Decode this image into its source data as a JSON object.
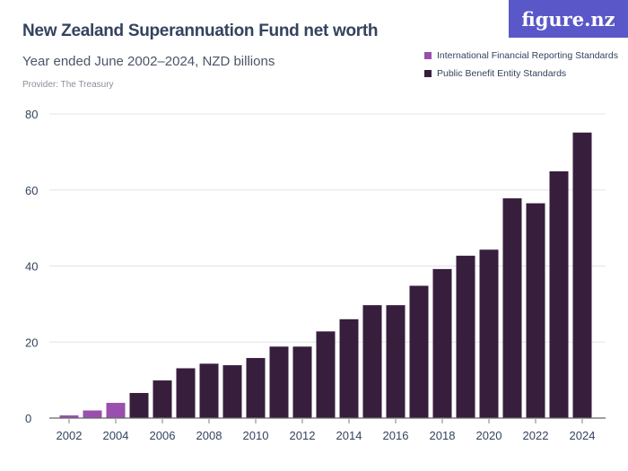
{
  "header": {
    "title": "New Zealand Superannuation Fund net worth",
    "subtitle": "Year ended June 2002–2024, NZD billions",
    "provider": "Provider: The Treasury",
    "logo": "figure.nz"
  },
  "chart_data": {
    "type": "bar",
    "title": "New Zealand Superannuation Fund net worth",
    "xlabel": "",
    "ylabel": "NZD billions",
    "ylim": [
      0,
      80
    ],
    "yticks": [
      0,
      20,
      40,
      60,
      80
    ],
    "xticks": [
      "2002",
      "2004",
      "2006",
      "2008",
      "2010",
      "2012",
      "2014",
      "2016",
      "2018",
      "2020",
      "2022",
      "2024"
    ],
    "categories": [
      "2002",
      "2003",
      "2004",
      "2005",
      "2006",
      "2007",
      "2008",
      "2009",
      "2010",
      "2011",
      "2012",
      "2013",
      "2014",
      "2015",
      "2016",
      "2017",
      "2018",
      "2019",
      "2020",
      "2021",
      "2022",
      "2023",
      "2024"
    ],
    "series": [
      {
        "name": "International Financial Reporting Standards",
        "color": "#9a4eae",
        "values": [
          0.7,
          2.0,
          4.0,
          null,
          null,
          null,
          null,
          null,
          null,
          null,
          null,
          null,
          null,
          null,
          null,
          null,
          null,
          null,
          null,
          null,
          null,
          null,
          null
        ]
      },
      {
        "name": "Public Benefit Entity Standards",
        "color": "#371e3c",
        "values": [
          null,
          null,
          null,
          6.6,
          9.9,
          13.1,
          14.3,
          13.9,
          15.8,
          18.8,
          18.8,
          22.8,
          26.0,
          29.7,
          29.7,
          34.8,
          39.2,
          42.7,
          44.3,
          57.8,
          56.5,
          64.9,
          75.1
        ]
      }
    ],
    "legend_position": "top-right",
    "grid": true
  }
}
